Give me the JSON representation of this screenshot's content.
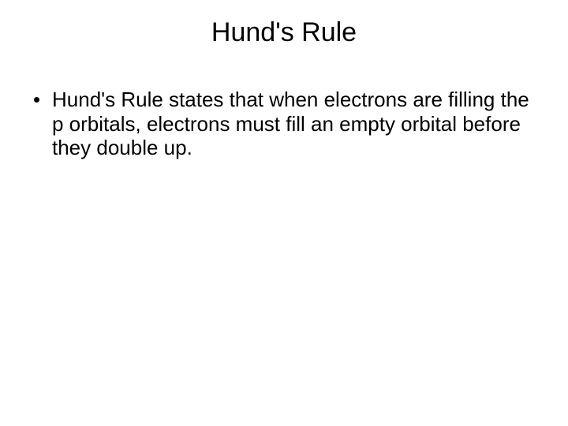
{
  "slide": {
    "title": "Hund's Rule",
    "bullets": [
      "Hund's Rule states that when electrons are filling the p orbitals, electrons must fill an empty orbital before they double up."
    ],
    "title_fontsize": 34,
    "body_fontsize": 26,
    "text_color": "#000000",
    "background_color": "#ffffff",
    "font_family": "Arial"
  }
}
